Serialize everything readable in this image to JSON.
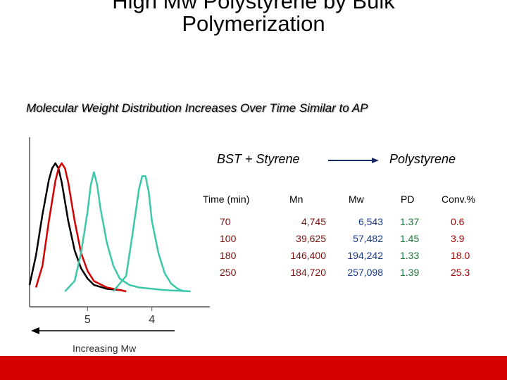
{
  "header": {
    "title_line1": "High Mw Polystyrene by Bulk",
    "title_line2": "Polymerization",
    "subtitle": "Molecular Weight Distribution Increases Over Time Similar to AP"
  },
  "reaction": {
    "reactant": "BST + Styrene",
    "product": "Polystyrene"
  },
  "table": {
    "headers": [
      "Time (min)",
      "Mn",
      "Mw",
      "PD",
      "Conv.%"
    ],
    "rows": [
      [
        "70",
        "4,745",
        "6,543",
        "1.37",
        "0.6"
      ],
      [
        "100",
        "39,625",
        "57,482",
        "1.45",
        "3.9"
      ],
      [
        "180",
        "146,400",
        "194,242",
        "1.33",
        "18.0"
      ],
      [
        "250",
        "184,720",
        "257,098",
        "1.39",
        "25.3"
      ]
    ]
  },
  "chart_data": {
    "type": "line",
    "xlabel": "Increasing Mw",
    "ylabel": "",
    "x_ticks": [
      "5",
      "4"
    ],
    "xlim": [
      5.9,
      3.1
    ],
    "ylim": [
      0,
      1
    ],
    "series": [
      {
        "color": "#000000",
        "x": [
          5.9,
          5.8,
          5.7,
          5.6,
          5.55,
          5.5,
          5.45,
          5.4,
          5.35,
          5.3,
          5.2,
          5.1,
          5.0,
          4.9,
          4.7,
          4.5,
          4.4
        ],
        "y": [
          0.05,
          0.28,
          0.6,
          0.87,
          0.96,
          1.0,
          0.96,
          0.85,
          0.7,
          0.55,
          0.32,
          0.18,
          0.1,
          0.05,
          0.02,
          0.01,
          0.0
        ]
      },
      {
        "color": "#d40000",
        "x": [
          5.8,
          5.7,
          5.6,
          5.5,
          5.45,
          5.4,
          5.35,
          5.3,
          5.2,
          5.1,
          5.0,
          4.9,
          4.7,
          4.5,
          4.4
        ],
        "y": [
          0.03,
          0.2,
          0.55,
          0.86,
          0.96,
          1.0,
          0.96,
          0.85,
          0.55,
          0.3,
          0.16,
          0.08,
          0.03,
          0.01,
          0.0
        ]
      },
      {
        "color": "#3cc8a8",
        "x": [
          5.35,
          5.2,
          5.1,
          5.0,
          4.95,
          4.9,
          4.85,
          4.8,
          4.7,
          4.6,
          4.5,
          4.35,
          4.2,
          4.0,
          3.8,
          3.6,
          3.4
        ],
        "y": [
          0.0,
          0.08,
          0.3,
          0.62,
          0.83,
          0.93,
          0.83,
          0.65,
          0.38,
          0.2,
          0.1,
          0.05,
          0.03,
          0.02,
          0.01,
          0.005,
          0.0
        ]
      },
      {
        "color": "#3cc8a8",
        "x": [
          4.6,
          4.4,
          4.3,
          4.2,
          4.15,
          4.1,
          4.05,
          4.0,
          3.9,
          3.8,
          3.7,
          3.6,
          3.5
        ],
        "y": [
          0.0,
          0.12,
          0.45,
          0.8,
          0.9,
          0.9,
          0.78,
          0.55,
          0.3,
          0.14,
          0.06,
          0.02,
          0.0
        ]
      }
    ]
  }
}
